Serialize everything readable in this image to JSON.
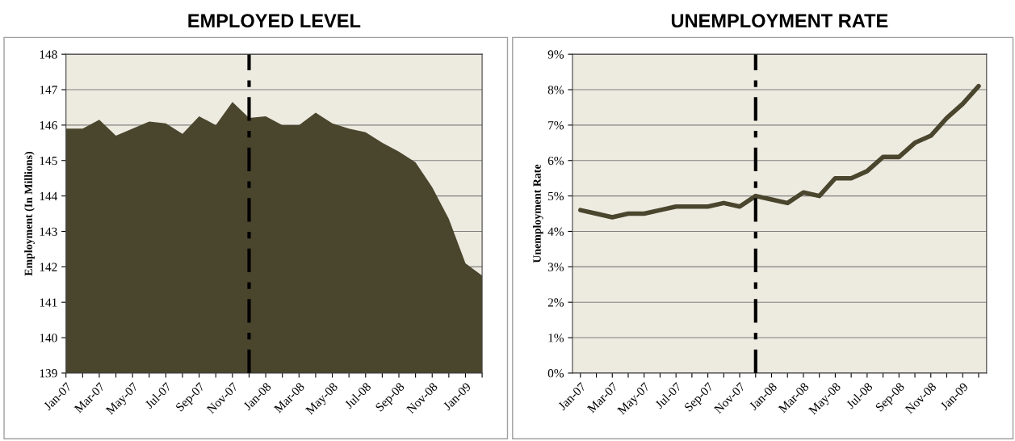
{
  "chart_data": [
    {
      "type": "area",
      "title": "EMPLOYED LEVEL",
      "ylabel": "Employment (In Millions)",
      "categories": [
        "Jan-07",
        null,
        "Mar-07",
        null,
        "May-07",
        null,
        "Jul-07",
        null,
        "Sep-07",
        null,
        "Nov-07",
        null,
        "Jan-08",
        null,
        "Mar-08",
        null,
        "May-08",
        null,
        "Jul-08",
        null,
        "Sep-08",
        null,
        "Nov-08",
        null,
        "Jan-09",
        null
      ],
      "series": [
        {
          "color": "#4a452d",
          "values": [
            145.9,
            145.9,
            146.15,
            145.7,
            145.9,
            146.1,
            146.05,
            145.75,
            146.25,
            146.0,
            146.65,
            146.2,
            146.25,
            146.0,
            146.0,
            146.35,
            146.05,
            145.9,
            145.8,
            145.5,
            145.25,
            144.95,
            144.25,
            143.35,
            142.1,
            141.75
          ]
        }
      ],
      "ylim": [
        139,
        148
      ],
      "yticks": [
        139,
        140,
        141,
        142,
        143,
        144,
        145,
        146,
        147,
        148
      ],
      "grid": "y"
    },
    {
      "type": "line",
      "title": "UNEMPLOYMENT RATE",
      "ylabel": "Unemployment Rate",
      "categories": [
        "Jan-07",
        null,
        "Mar-07",
        null,
        "May-07",
        null,
        "Jul-07",
        null,
        "Sep-07",
        null,
        "Nov-07",
        null,
        "Jan-08",
        null,
        "Mar-08",
        null,
        "May-08",
        null,
        "Jul-08",
        null,
        "Sep-08",
        null,
        "Nov-08",
        null,
        "Jan-09",
        null
      ],
      "series": [
        {
          "color": "#4a452d",
          "values": [
            4.6,
            4.5,
            4.4,
            4.5,
            4.5,
            4.6,
            4.7,
            4.7,
            4.7,
            4.8,
            4.7,
            5.0,
            4.9,
            4.8,
            5.1,
            5.0,
            5.5,
            5.5,
            5.7,
            6.1,
            6.1,
            6.5,
            6.7,
            7.2,
            7.6,
            8.1
          ]
        }
      ],
      "ylim": [
        0,
        9
      ],
      "yticks": [
        {
          "value": 0,
          "label": "0%"
        },
        {
          "value": 1,
          "label": "1%"
        },
        {
          "value": 2,
          "label": "2%"
        },
        {
          "value": 3,
          "label": "3%"
        },
        {
          "value": 4,
          "label": "4%"
        },
        {
          "value": 5,
          "label": "5%"
        },
        {
          "value": 6,
          "label": "6%"
        },
        {
          "value": 7,
          "label": "7%"
        },
        {
          "value": 8,
          "label": "8%"
        },
        {
          "value": 9,
          "label": "9%"
        }
      ],
      "grid": "y",
      "line_style": "solid"
    }
  ]
}
